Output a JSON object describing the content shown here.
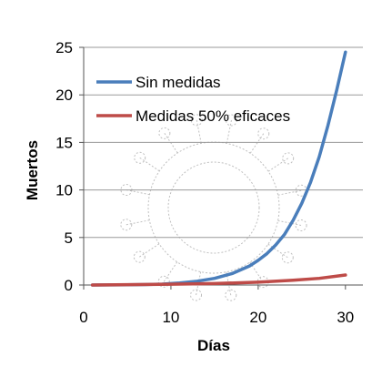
{
  "chart_data": {
    "type": "line",
    "title": "",
    "xlabel": "Días",
    "ylabel": "Muertos",
    "xlim": [
      0,
      32
    ],
    "ylim": [
      0,
      25
    ],
    "xticks": [
      0,
      10,
      20,
      30
    ],
    "yticks": [
      0,
      5,
      10,
      15,
      20,
      25
    ],
    "grid": "horizontal",
    "legend_position": "top-left",
    "series": [
      {
        "name": "Sin medidas",
        "color": "#4a7ebb",
        "x": [
          1,
          3,
          5,
          7,
          9,
          11,
          13,
          15,
          17,
          19,
          20,
          21,
          22,
          23,
          24,
          25,
          26,
          27,
          28,
          29,
          30
        ],
        "y": [
          0.0,
          0.01,
          0.02,
          0.05,
          0.1,
          0.22,
          0.4,
          0.7,
          1.2,
          2.0,
          2.6,
          3.3,
          4.2,
          5.3,
          6.8,
          8.6,
          10.8,
          13.5,
          16.8,
          20.5,
          24.5
        ]
      },
      {
        "name": "Medidas 50% eficaces",
        "color": "#be4b48",
        "x": [
          1,
          5,
          10,
          15,
          20,
          24,
          27,
          30
        ],
        "y": [
          0.0,
          0.03,
          0.08,
          0.15,
          0.3,
          0.5,
          0.7,
          1.05
        ]
      }
    ]
  }
}
